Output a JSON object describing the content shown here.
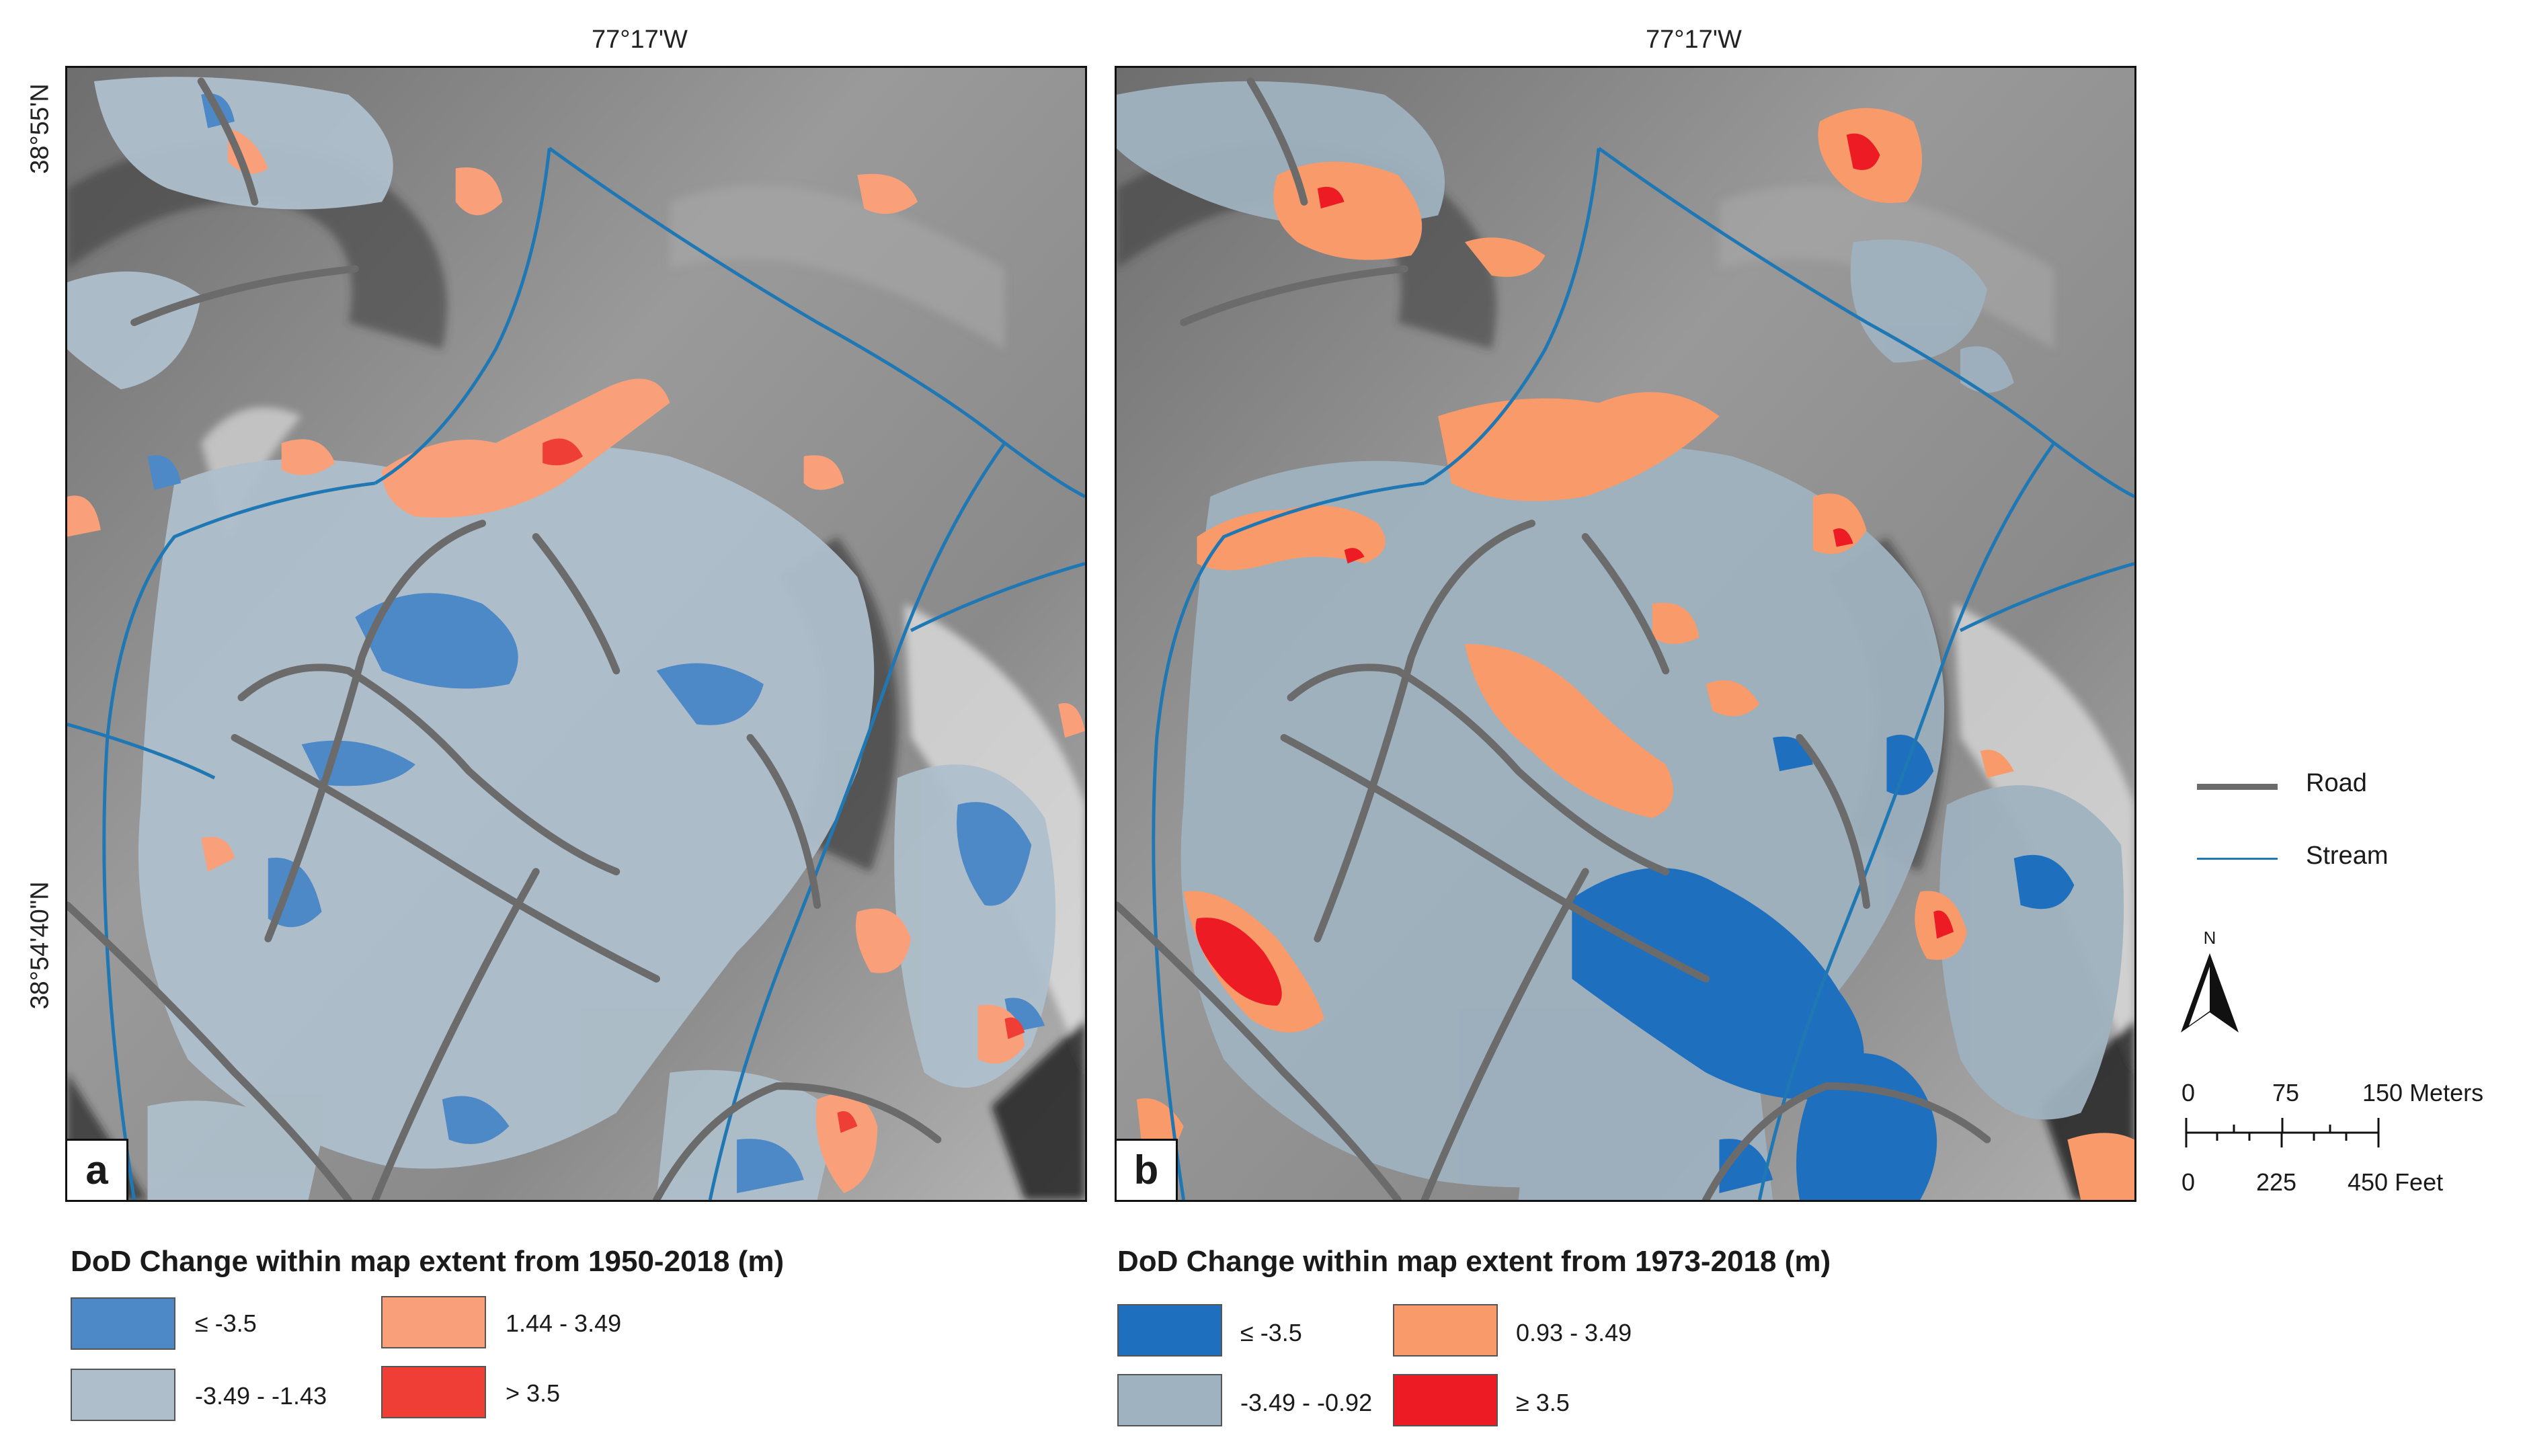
{
  "coords": {
    "top_longitude_a": "77°17'W",
    "top_longitude_b": "77°17'W",
    "left_latitude_upper": "38°55'N",
    "left_latitude_lower": "38°54'40\"N"
  },
  "panels": [
    {
      "id": "a",
      "label": "a"
    },
    {
      "id": "b",
      "label": "b"
    }
  ],
  "legend_a": {
    "title": "DoD Change within map extent from 1950-2018 (m)",
    "classes": [
      {
        "label": "≤ -3.5",
        "color": "#4d88c7"
      },
      {
        "label": "-3.49 - -1.43",
        "color": "#aebfcb"
      },
      {
        "label": "1.44 - 3.49",
        "color": "#f9a07a"
      },
      {
        "label": "> 3.5",
        "color": "#ef3e36"
      }
    ]
  },
  "legend_b": {
    "title": "DoD Change within map extent from 1973-2018 (m)",
    "classes": [
      {
        "label": "≤ -3.5",
        "color": "#1f6fbf"
      },
      {
        "label": "-3.49 - -0.92",
        "color": "#9fb2bf"
      },
      {
        "label": "0.93 - 3.49",
        "color": "#f99a6a"
      },
      {
        "label": "≥ 3.5",
        "color": "#ed1c24"
      }
    ]
  },
  "map_key": {
    "road_label": "Road",
    "road_color": "#6b6b6b",
    "stream_label": "Stream",
    "stream_color": "#1f78b4"
  },
  "north_arrow": {
    "label": "N"
  },
  "scale_bar": {
    "meters": [
      "0",
      "75",
      "150 Meters"
    ],
    "feet": [
      "0",
      "225",
      "450 Feet"
    ]
  }
}
